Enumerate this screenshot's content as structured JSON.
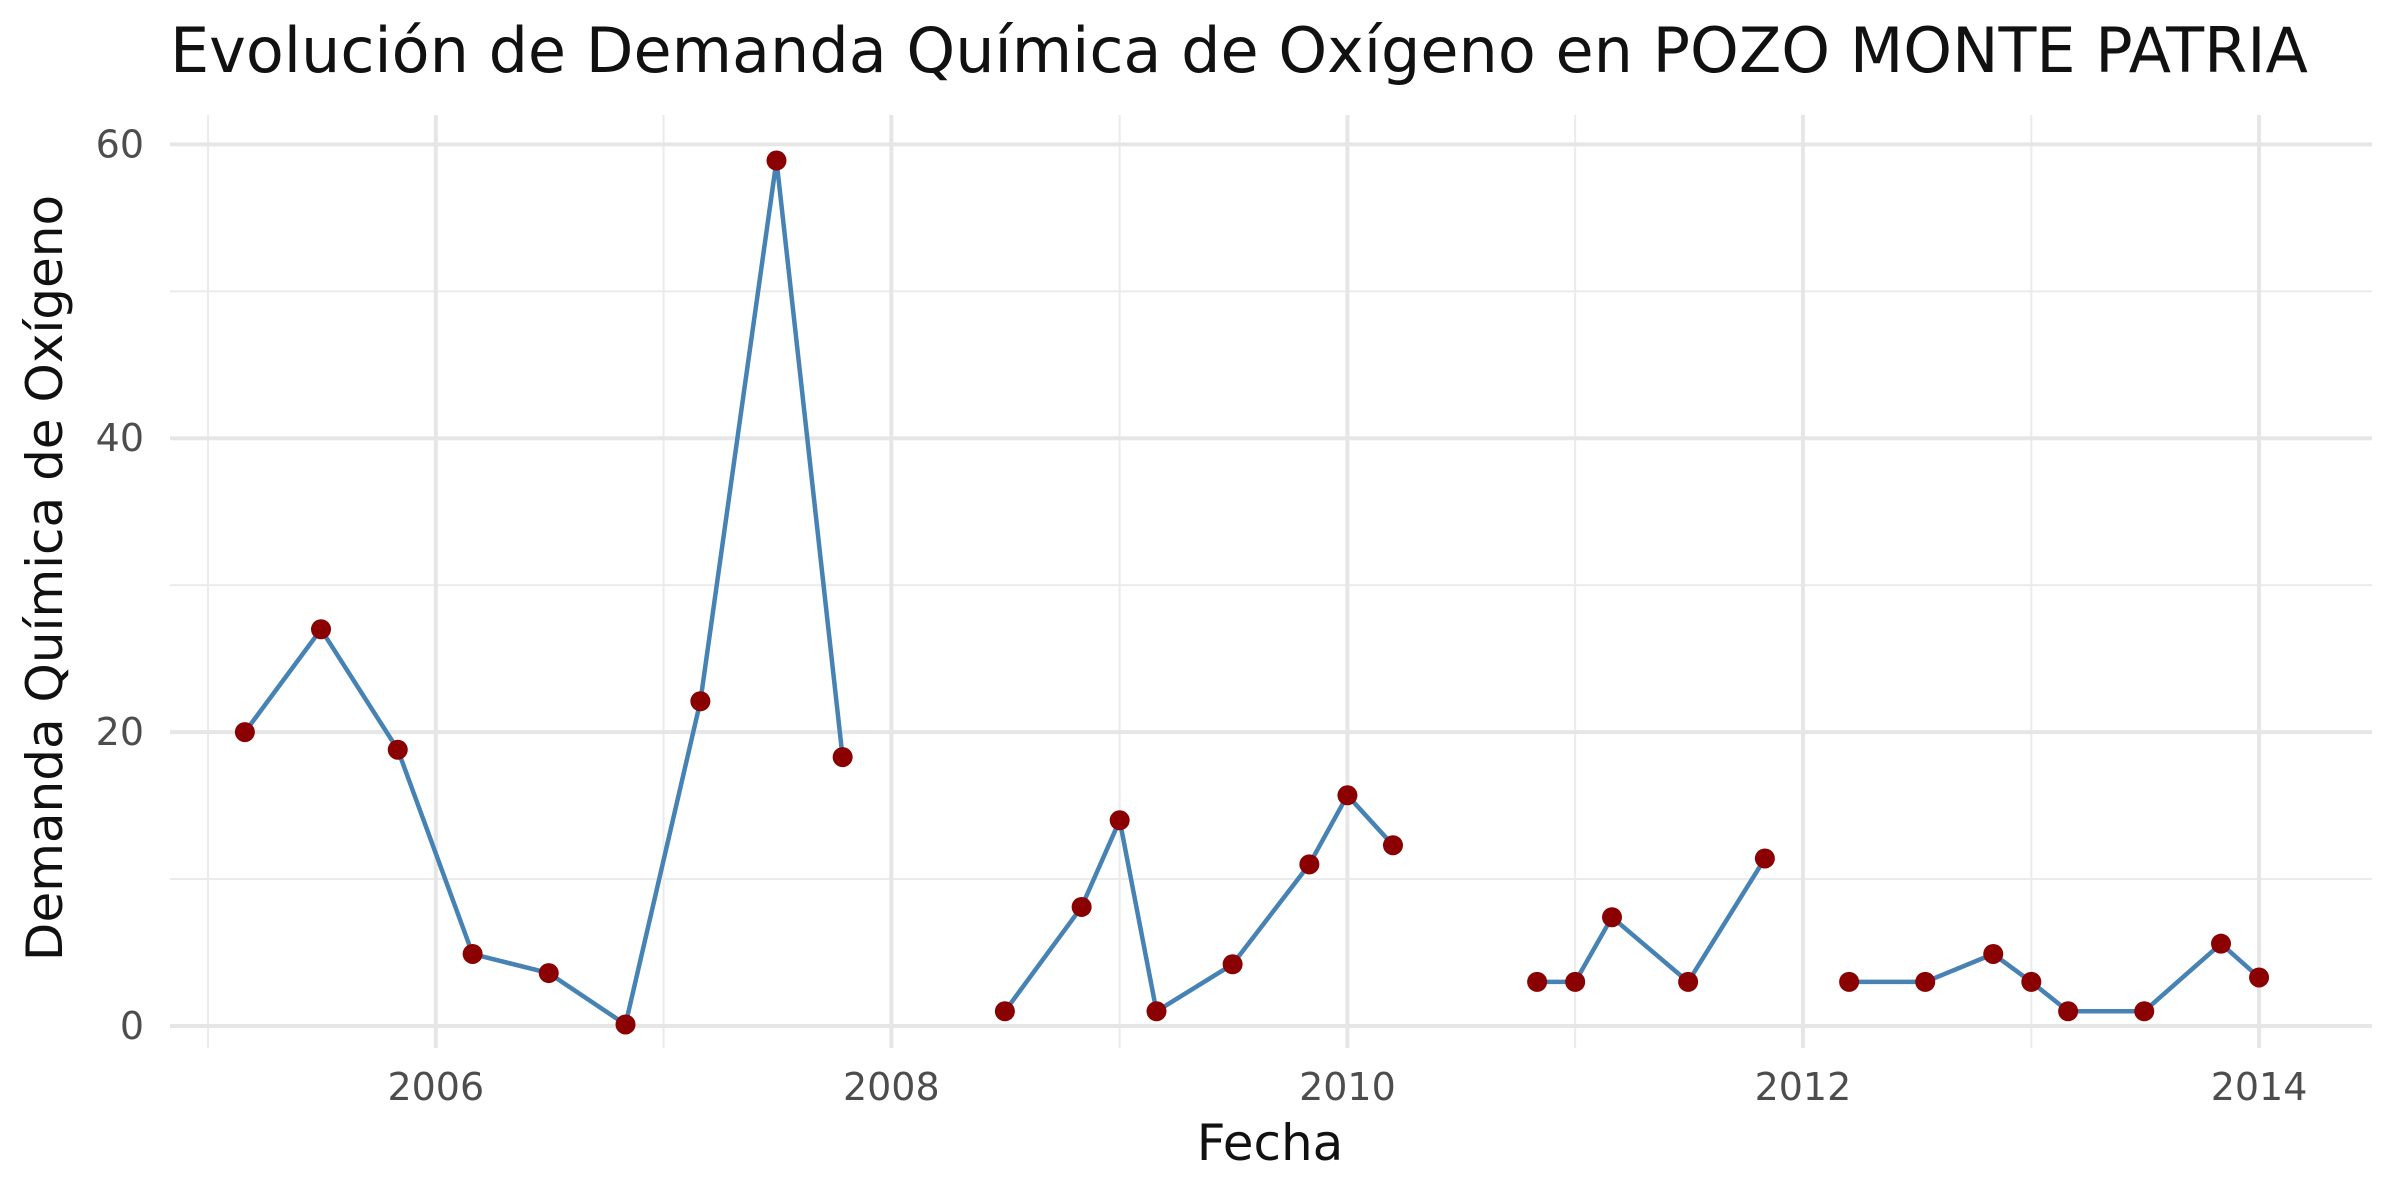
{
  "chart_data": {
    "type": "line",
    "title": "Evolución de Demanda Química de Oxígeno en POZO MONTE PATRIA",
    "xlabel": "Fecha",
    "ylabel": "Demanda Química de Oxígeno",
    "x_ticks": [
      "2006",
      "2008",
      "2010",
      "2012",
      "2014"
    ],
    "y_ticks": [
      "0",
      "20",
      "40",
      "60"
    ],
    "xlim": [
      "2004-11-01",
      "2014-07-01"
    ],
    "ylim": [
      -1.5,
      62
    ],
    "grid": true,
    "line_color": "#4682b4",
    "point_color": "#8b0000",
    "segments": [
      {
        "x": [
          "2005-03-01",
          "2005-07-01",
          "2005-11-01",
          "2006-03-01",
          "2006-07-01",
          "2006-11-01",
          "2007-03-01",
          "2007-07-01",
          "2007-10-15"
        ],
        "y": [
          20,
          27,
          18.8,
          4.9,
          3.6,
          0.1,
          22.1,
          58.9,
          18.3
        ]
      },
      {
        "x": [
          "2008-07-01",
          "2008-11-01",
          "2009-01-01",
          "2009-03-01",
          "2009-07-01",
          "2009-11-01",
          "2010-01-01",
          "2010-03-15"
        ],
        "y": [
          1,
          8.1,
          14,
          1,
          4.2,
          11,
          15.7,
          12.3
        ]
      },
      {
        "x": [
          "2010-11-01",
          "2011-01-01",
          "2011-03-01",
          "2011-07-01",
          "2011-11-01"
        ],
        "y": [
          3,
          3,
          7.4,
          3,
          11.4
        ]
      },
      {
        "x": [
          "2012-03-15",
          "2012-07-15",
          "2012-11-01",
          "2013-01-01",
          "2013-03-01",
          "2013-07-01",
          "2013-11-01",
          "2014-01-01"
        ],
        "y": [
          3,
          3,
          4.9,
          3,
          1,
          1,
          5.6,
          3.3
        ]
      }
    ]
  }
}
